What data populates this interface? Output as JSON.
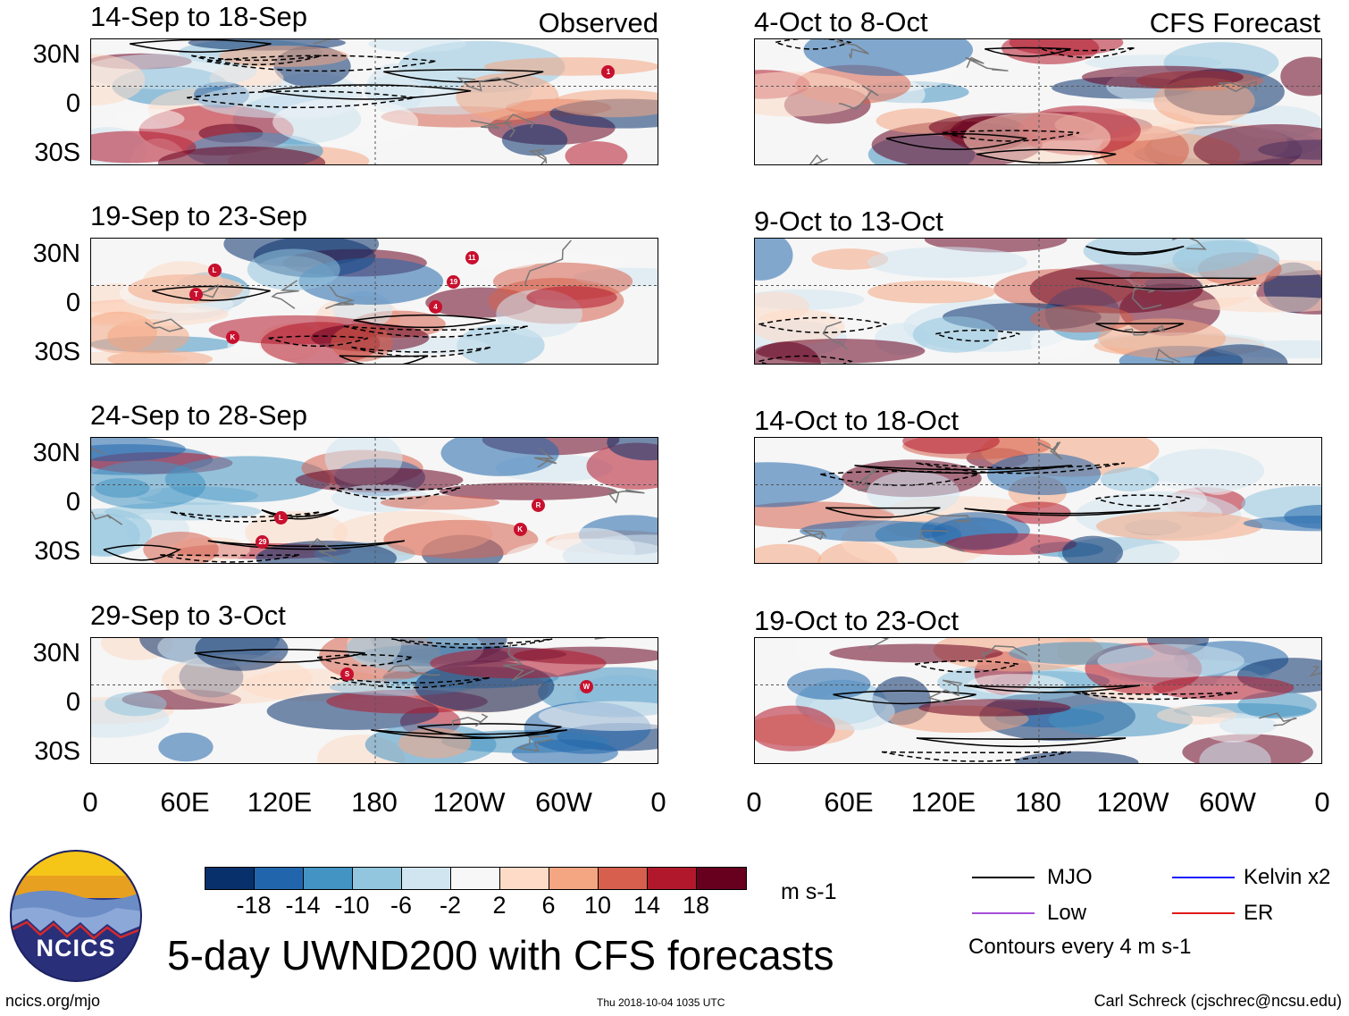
{
  "header": {
    "left_label": "Observed",
    "right_label": "CFS Forecast"
  },
  "observed_panels": [
    {
      "title": "14-Sep to 18-Sep",
      "storms": [
        "1"
      ]
    },
    {
      "title": "19-Sep to 23-Sep",
      "storms": [
        "4",
        "T",
        "19",
        "L",
        "11",
        "K"
      ]
    },
    {
      "title": "24-Sep to 28-Sep",
      "storms": [
        "29",
        "K",
        "L",
        "R"
      ]
    },
    {
      "title": "29-Sep to 3-Oct",
      "storms": [
        "W",
        "S"
      ]
    }
  ],
  "forecast_panels": [
    {
      "title": "4-Oct to 8-Oct"
    },
    {
      "title": "9-Oct to 13-Oct"
    },
    {
      "title": "14-Oct to 18-Oct"
    },
    {
      "title": "19-Oct to 23-Oct"
    }
  ],
  "y_ticks": [
    "30N",
    "0",
    "30S"
  ],
  "x_ticks": [
    "0",
    "60E",
    "120E",
    "180",
    "120W",
    "60W",
    "0"
  ],
  "colorbar": {
    "labels": [
      "-18",
      "-14",
      "-10",
      "-6",
      "-2",
      "2",
      "6",
      "10",
      "14",
      "18"
    ],
    "colors": [
      "#08306b",
      "#2166ac",
      "#4393c3",
      "#92c5de",
      "#d1e5f0",
      "#f7f7f7",
      "#fddbc7",
      "#f4a582",
      "#d6604d",
      "#b2182b",
      "#67001f"
    ],
    "units": "m s-1"
  },
  "legend": {
    "items": [
      {
        "label": "MJO",
        "color": "#000000"
      },
      {
        "label": "Kelvin x2",
        "color": "#1a1aff"
      },
      {
        "label": "Low",
        "color": "#a64dd9"
      },
      {
        "label": "ER",
        "color": "#e01b1b"
      }
    ],
    "note": "Contours every 4 m s-1"
  },
  "logo": {
    "text": "NCICS"
  },
  "title": "5-day UWND200 with CFS forecasts",
  "footer": {
    "url": "ncics.org/mjo",
    "timestamp": "Thu 2018-10-04 1035 UTC",
    "credit": "Carl Schreck (cjschrec@ncsu.edu)"
  }
}
